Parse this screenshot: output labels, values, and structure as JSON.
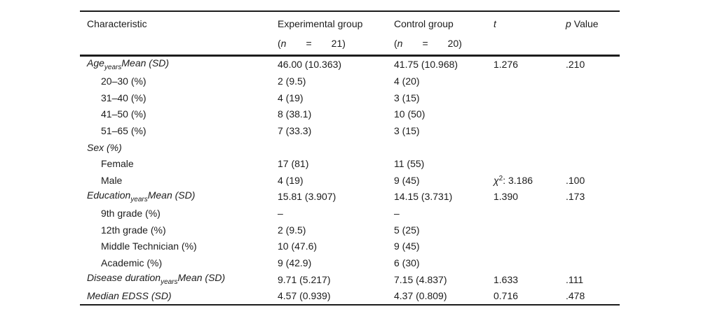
{
  "table": {
    "header": {
      "characteristic": "Characteristic",
      "experimental": {
        "title": "Experimental group",
        "open": "(",
        "n": "n",
        "eq": "=",
        "count": "21)"
      },
      "control": {
        "title": "Control group",
        "open": "(",
        "n": "n",
        "eq": "=",
        "count": "20)"
      },
      "t": "t",
      "p": {
        "italic": "p",
        "rest": "Value"
      }
    },
    "rows": [
      {
        "label": [
          {
            "t": "Age",
            "s": "i"
          },
          {
            "t": "years",
            "s": "sub"
          },
          {
            "t": "Mean (SD)",
            "s": "i"
          }
        ],
        "indent": false,
        "exp": "46.00 (10.363)",
        "ctrl": "41.75 (10.968)",
        "t": [
          {
            "t": "1.276",
            "s": "n"
          }
        ],
        "p": ".210"
      },
      {
        "label": [
          {
            "t": "20–30 (%)",
            "s": "n"
          }
        ],
        "indent": true,
        "exp": "2 (9.5)",
        "ctrl": "4 (20)",
        "t": [],
        "p": ""
      },
      {
        "label": [
          {
            "t": "31–40 (%)",
            "s": "n"
          }
        ],
        "indent": true,
        "exp": "4 (19)",
        "ctrl": "3 (15)",
        "t": [],
        "p": ""
      },
      {
        "label": [
          {
            "t": "41–50 (%)",
            "s": "n"
          }
        ],
        "indent": true,
        "exp": "8 (38.1)",
        "ctrl": "10 (50)",
        "t": [],
        "p": ""
      },
      {
        "label": [
          {
            "t": "51–65 (%)",
            "s": "n"
          }
        ],
        "indent": true,
        "exp": "7 (33.3)",
        "ctrl": "3 (15)",
        "t": [],
        "p": ""
      },
      {
        "label": [
          {
            "t": "Sex (%)",
            "s": "i"
          }
        ],
        "indent": false,
        "exp": "",
        "ctrl": "",
        "t": [],
        "p": ""
      },
      {
        "label": [
          {
            "t": "Female",
            "s": "n"
          }
        ],
        "indent": true,
        "exp": "17 (81)",
        "ctrl": "11 (55)",
        "t": [],
        "p": ""
      },
      {
        "label": [
          {
            "t": "Male",
            "s": "n"
          }
        ],
        "indent": true,
        "exp": "4 (19)",
        "ctrl": "9 (45)",
        "t": [
          {
            "t": "χ",
            "s": "i"
          },
          {
            "t": "2",
            "s": "sup"
          },
          {
            "t": ": 3.186",
            "s": "n"
          }
        ],
        "p": ".100"
      },
      {
        "label": [
          {
            "t": "Education",
            "s": "i"
          },
          {
            "t": "years",
            "s": "sub"
          },
          {
            "t": "Mean (SD)",
            "s": "i"
          }
        ],
        "indent": false,
        "exp": "15.81 (3.907)",
        "ctrl": "14.15 (3.731)",
        "t": [
          {
            "t": "1.390",
            "s": "n"
          }
        ],
        "p": ".173"
      },
      {
        "label": [
          {
            "t": "9th grade (%)",
            "s": "n"
          }
        ],
        "indent": true,
        "exp": "–",
        "ctrl": "–",
        "t": [],
        "p": ""
      },
      {
        "label": [
          {
            "t": "12th grade (%)",
            "s": "n"
          }
        ],
        "indent": true,
        "exp": "2 (9.5)",
        "ctrl": "5 (25)",
        "t": [],
        "p": ""
      },
      {
        "label": [
          {
            "t": "Middle Technician (%)",
            "s": "n"
          }
        ],
        "indent": true,
        "exp": "10 (47.6)",
        "ctrl": "9 (45)",
        "t": [],
        "p": ""
      },
      {
        "label": [
          {
            "t": "Academic (%)",
            "s": "n"
          }
        ],
        "indent": true,
        "exp": "9 (42.9)",
        "ctrl": "6 (30)",
        "t": [],
        "p": ""
      },
      {
        "label": [
          {
            "t": "Disease duration",
            "s": "i"
          },
          {
            "t": "years",
            "s": "sub"
          },
          {
            "t": "Mean (SD)",
            "s": "i"
          }
        ],
        "indent": false,
        "exp": "9.71 (5.217)",
        "ctrl": "7.15 (4.837)",
        "t": [
          {
            "t": "1.633",
            "s": "n"
          }
        ],
        "p": ".111"
      },
      {
        "label": [
          {
            "t": "Median EDSS (SD)",
            "s": "i"
          }
        ],
        "indent": false,
        "exp": "4.57 (0.939)",
        "ctrl": "4.37 (0.809)",
        "t": [
          {
            "t": "0.716",
            "s": "n"
          }
        ],
        "p": ".478"
      }
    ]
  }
}
